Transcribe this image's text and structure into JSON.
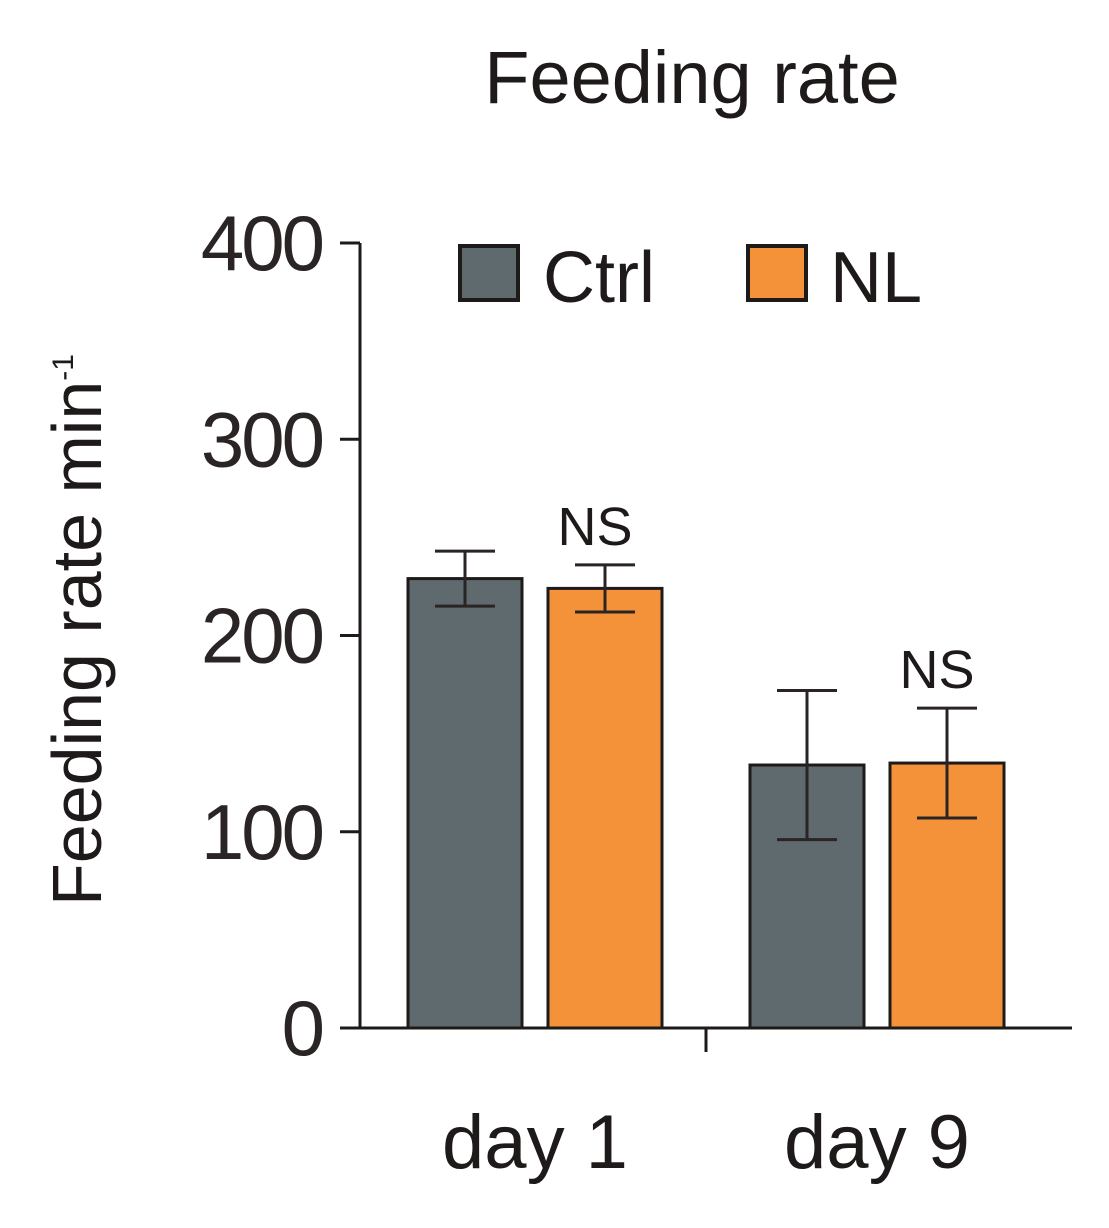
{
  "chart_data": {
    "type": "bar",
    "title": "Feeding rate",
    "xlabel": "",
    "ylabel": "Feeding rate min",
    "ylabel_superscript": "-1",
    "ylim": [
      0,
      400
    ],
    "yticks": [
      0,
      100,
      200,
      300,
      400
    ],
    "ytick_labels": [
      "0",
      "100",
      "200",
      "300",
      "400"
    ],
    "categories": [
      "day 1",
      "day 9"
    ],
    "series": [
      {
        "name": "Ctrl",
        "color": "#5e6a6e",
        "values": [
          229,
          134
        ],
        "errors": [
          14,
          38
        ]
      },
      {
        "name": "NL",
        "color": "#f4923a",
        "values": [
          224,
          135
        ],
        "errors": [
          12,
          28
        ]
      }
    ],
    "annotations": [
      "NS",
      "NS"
    ],
    "legend_position": "top",
    "grid": false
  }
}
